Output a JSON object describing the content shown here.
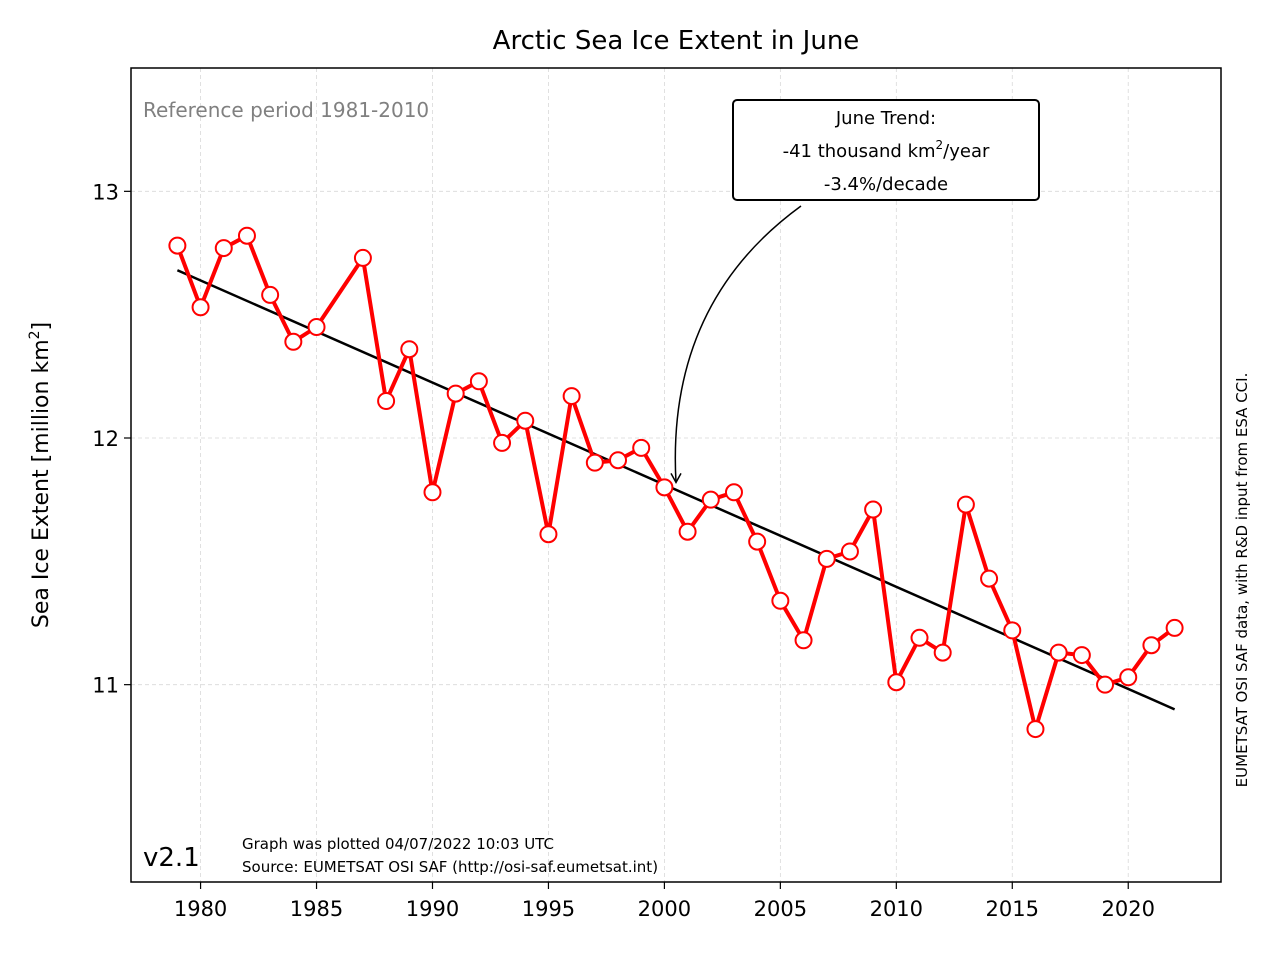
{
  "chart_data": {
    "type": "line",
    "title": "Arctic Sea Ice Extent in June",
    "ylabel": "Sea Ice Extent [million km",
    "ylabel_sup": "2",
    "ylabel_end": "]",
    "xlim": [
      1977,
      2024
    ],
    "ylim": [
      10.2,
      13.5
    ],
    "x_ticks": [
      1980,
      1985,
      1990,
      1995,
      2000,
      2005,
      2010,
      2015,
      2020
    ],
    "y_ticks": [
      11,
      12,
      13
    ],
    "grid": true,
    "series": [
      {
        "color": "#ff0000",
        "marker": "open-circle",
        "x": [
          1979,
          1980,
          1981,
          1982,
          1983,
          1984,
          1985,
          1987,
          1988,
          1989,
          1990,
          1991,
          1992,
          1993,
          1994,
          1995,
          1996,
          1997,
          1998,
          1999,
          2000,
          2001,
          2002,
          2003,
          2004,
          2005,
          2006,
          2007,
          2008,
          2009,
          2010,
          2011,
          2012,
          2013,
          2014,
          2015,
          2016,
          2017,
          2018,
          2019,
          2020,
          2021,
          2022
        ],
        "y": [
          12.78,
          12.53,
          12.77,
          12.82,
          12.58,
          12.39,
          12.45,
          12.73,
          12.15,
          12.36,
          11.78,
          12.18,
          12.23,
          11.98,
          12.07,
          11.61,
          12.17,
          11.9,
          11.91,
          11.96,
          11.8,
          11.62,
          11.75,
          11.78,
          11.58,
          11.34,
          11.18,
          11.51,
          11.54,
          11.71,
          11.01,
          11.19,
          11.13,
          11.73,
          11.43,
          11.22,
          10.82,
          11.13,
          11.12,
          11.0,
          11.03,
          11.16,
          11.23
        ]
      }
    ],
    "trend": {
      "color": "#000000",
      "x": [
        1979,
        2022
      ],
      "y": [
        12.68,
        10.9
      ]
    },
    "annotations": {
      "reference": "Reference period 1981-2010",
      "trend_box_line1": "June Trend:",
      "trend_box_line2_pre": "-41 thousand km",
      "trend_box_line2_sup": "2",
      "trend_box_line2_post": "/year",
      "trend_box_line3": "-3.4%/decade",
      "arrow_target": {
        "x": 2000.5,
        "y": 11.82
      },
      "version": "v2.1",
      "plotted": "Graph was plotted 04/07/2022 10:03 UTC",
      "source": "Source: EUMETSAT OSI SAF (http://osi-saf.eumetsat.int)",
      "credit": "EUMETSAT OSI SAF data, with R&D input from ESA CCI."
    }
  }
}
